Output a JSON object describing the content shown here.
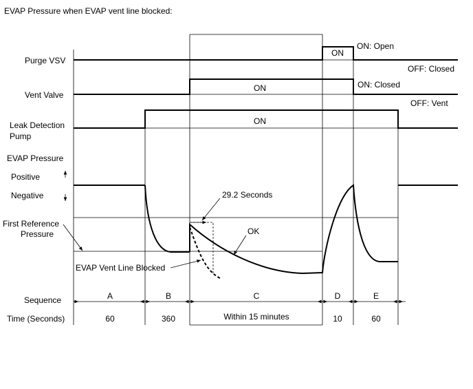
{
  "title": "EVAP Pressure when EVAP vent line blocked:",
  "signals": {
    "purge_vsv": "Purge VSV",
    "vent_valve": "Vent Valve",
    "pump_line1": "Leak Detection",
    "pump_line2": "Pump",
    "evap_pressure": "EVAP Pressure",
    "positive": "Positive",
    "negative": "Negative",
    "first_ref_line1": "First Reference",
    "first_ref_line2": "Pressure"
  },
  "states": {
    "purge_on": "ON",
    "vent_on": "ON",
    "pump_on": "ON",
    "purge_on_open": "ON: Open",
    "purge_off_closed": "OFF: Closed",
    "vent_on_closed": "ON: Closed",
    "vent_off_vent": "OFF: Vent"
  },
  "annotations": {
    "seconds": "29.2 Seconds",
    "ok": "OK",
    "blocked": "EVAP Vent Line Blocked"
  },
  "table": {
    "sequence_label": "Sequence",
    "time_label": "Time (Seconds)",
    "sequence": [
      "A",
      "B",
      "C",
      "D",
      "E"
    ],
    "time": [
      "60",
      "360",
      "Within 15 minutes",
      "10",
      "60"
    ]
  }
}
